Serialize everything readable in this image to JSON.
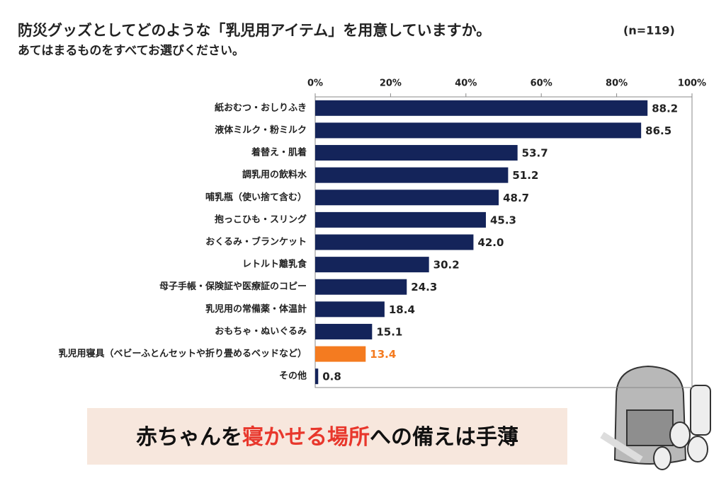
{
  "chart_data": {
    "type": "barh",
    "title": "防災グッズとしてどのような「乳児用アイテム」を用意していますか。",
    "note": "(n=119)",
    "subtitle": "あてはまるものをすべてお選びください。",
    "categories": [
      "紙おむつ・おしりふき",
      "液体ミルク・粉ミルク",
      "着替え・肌着",
      "調乳用の飲料水",
      "哺乳瓶（使い捨て含む）",
      "抱っこひも・スリング",
      "おくるみ・ブランケット",
      "レトルト離乳食",
      "母子手帳・保険証や医療証のコピー",
      "乳児用の常備薬・体温計",
      "おもちゃ・ぬいぐるみ",
      "乳児用寝具（ベビーふとんセットや折り畳めるベッドなど）",
      "その他"
    ],
    "values": [
      88.2,
      86.5,
      53.7,
      51.2,
      48.7,
      45.3,
      42.0,
      30.2,
      24.3,
      18.4,
      15.1,
      13.4,
      0.8
    ],
    "value_labels": [
      "88.2",
      "86.5",
      "53.7",
      "51.2",
      "48.7",
      "45.3",
      "42.0",
      "30.2",
      "24.3",
      "18.4",
      "15.1",
      "13.4",
      "0.8"
    ],
    "colors": [
      "#14245a",
      "#14245a",
      "#14245a",
      "#14245a",
      "#14245a",
      "#14245a",
      "#14245a",
      "#14245a",
      "#14245a",
      "#14245a",
      "#14245a",
      "#f47b20",
      "#14245a"
    ],
    "xlim": [
      0,
      100
    ],
    "xticks": [
      {
        "value": 0,
        "label": "0%"
      },
      {
        "value": 20,
        "label": "20%"
      },
      {
        "value": 40,
        "label": "40%"
      },
      {
        "value": 60,
        "label": "60%"
      },
      {
        "value": 80,
        "label": "80%"
      },
      {
        "value": 100,
        "label": "100%"
      }
    ],
    "banner": {
      "background": "#f7e7dd",
      "segments": [
        {
          "text": "赤ちゃんを",
          "color": "#111111"
        },
        {
          "text": "寝かせる場所",
          "color": "#e8372c"
        },
        {
          "text": "への備えは手薄",
          "color": "#111111"
        }
      ]
    }
  }
}
